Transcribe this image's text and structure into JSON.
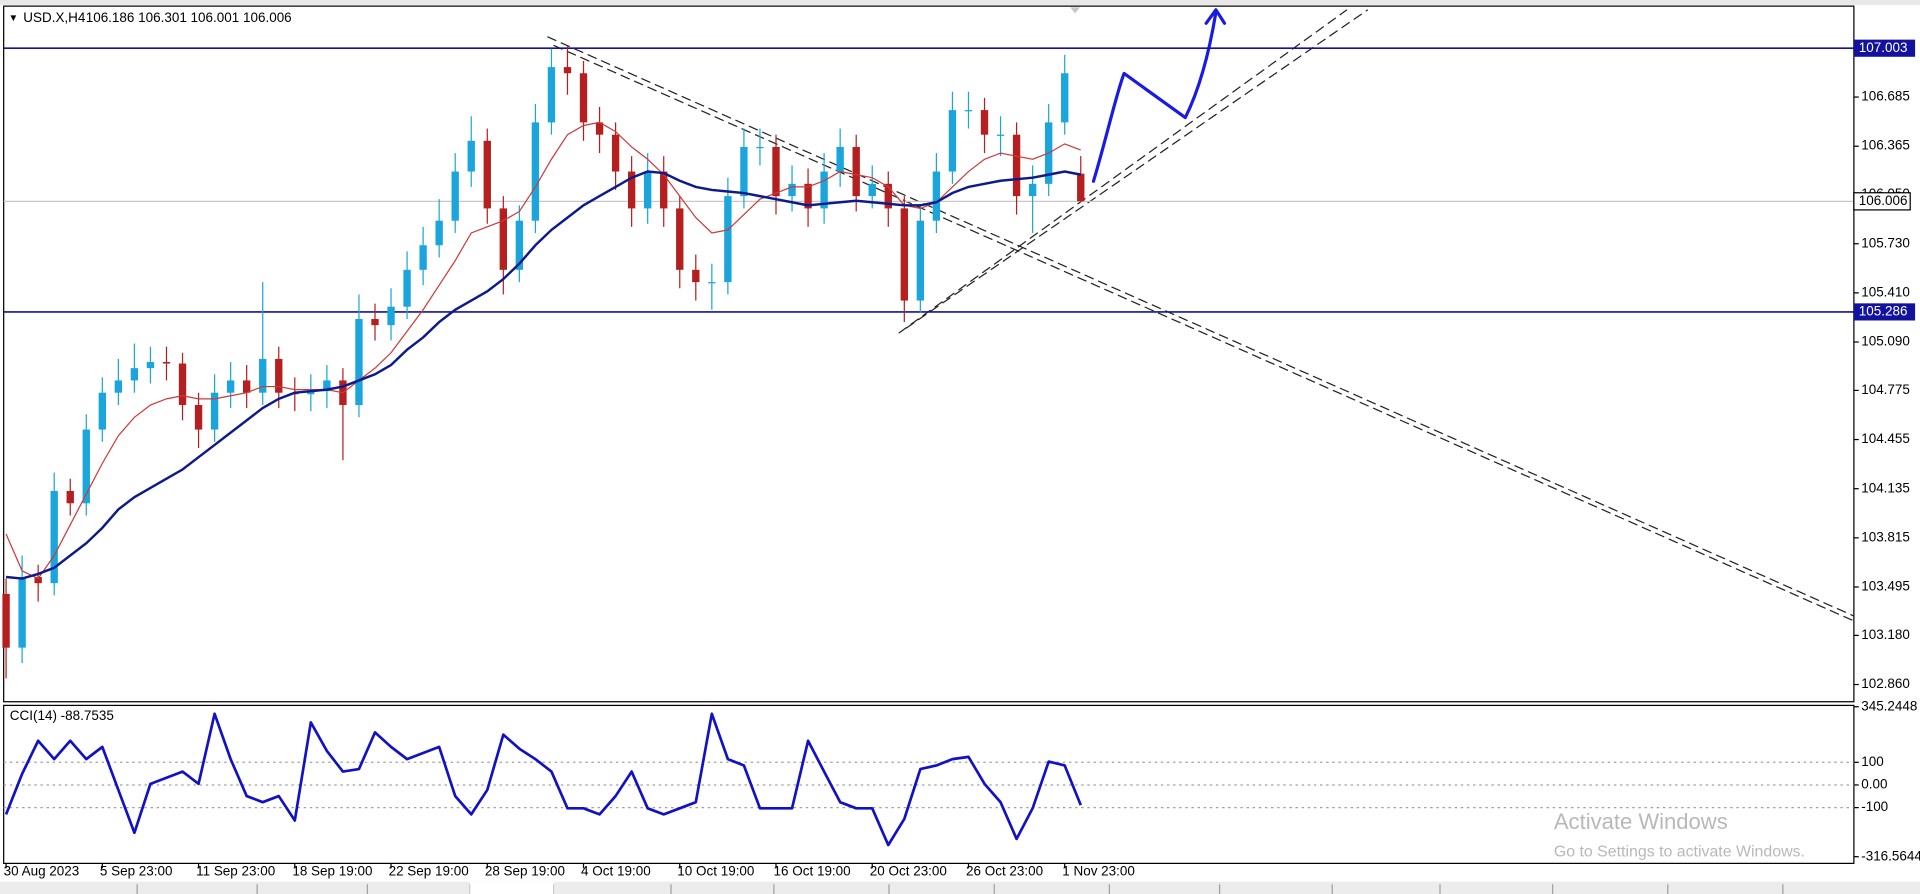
{
  "chart_data": {
    "type": "candlestick",
    "symbol_label": "USD.X,H4",
    "ohlc_label": "106.186 106.301 106.001 106.006",
    "xlim": [
      -0.15,
      115.2
    ],
    "xticks": [
      {
        "value": 0,
        "label": "30 Aug 2023"
      },
      {
        "value": 6,
        "label": "5 Sep 23:00"
      },
      {
        "value": 12,
        "label": "11 Sep 23:00"
      },
      {
        "value": 18,
        "label": "18 Sep 19:00"
      },
      {
        "value": 24,
        "label": "22 Sep 19:00"
      },
      {
        "value": 30,
        "label": "28 Sep 19:00"
      },
      {
        "value": 36,
        "label": "4 Oct 19:00"
      },
      {
        "value": 42,
        "label": "10 Oct 19:00"
      },
      {
        "value": 48,
        "label": "16 Oct 19:00"
      },
      {
        "value": 54,
        "label": "20 Oct 23:00"
      },
      {
        "value": 60,
        "label": "26 Oct 23:00"
      },
      {
        "value": 66,
        "label": "1 Nov 23:00"
      }
    ],
    "ylim": [
      102.748,
      107.277
    ],
    "yticks": [
      106.685,
      106.365,
      {
        "value": 106.05,
        "label": "106.050"
      },
      {
        "value": 105.73,
        "label": "105.730"
      },
      {
        "value": 105.41,
        "label": "105.410"
      },
      {
        "value": 105.09,
        "label": "105.090"
      },
      104.775,
      104.455,
      104.135,
      103.815,
      103.495,
      {
        "value": 103.18,
        "label": "103.180"
      },
      {
        "value": 102.86,
        "label": "102.860"
      }
    ],
    "open": [
      103.45,
      103.1,
      103.56,
      103.52,
      104.12,
      104.04,
      104.52,
      104.76,
      104.84,
      104.92,
      104.96,
      104.95,
      104.68,
      104.52,
      104.76,
      104.84,
      104.76,
      104.98,
      104.76,
      104.75,
      104.77,
      104.84,
      104.68,
      105.24,
      105.2,
      105.32,
      105.56,
      105.72,
      105.88,
      106.2,
      106.4,
      105.96,
      105.56,
      105.88,
      106.52,
      106.88,
      106.84,
      106.52,
      106.44,
      106.2,
      105.96,
      106.2,
      105.96,
      105.56,
      105.48,
      105.48,
      106.04,
      106.36,
      106.36,
      106.04,
      106.12,
      105.96,
      106.2,
      106.36,
      106.04,
      106.12,
      105.96,
      105.36,
      105.88,
      106.2,
      106.6,
      106.6,
      106.44,
      106.44,
      106.04,
      106.12,
      106.52,
      106.186
    ],
    "high": [
      103.55,
      103.7,
      103.64,
      104.24,
      104.2,
      104.62,
      104.86,
      104.98,
      105.08,
      105.06,
      105.06,
      105.02,
      104.76,
      104.88,
      104.96,
      104.94,
      105.48,
      105.06,
      104.86,
      104.88,
      104.94,
      104.92,
      105.4,
      105.34,
      105.44,
      105.68,
      105.84,
      106.02,
      106.32,
      106.56,
      106.48,
      106.04,
      105.98,
      106.64,
      107.0,
      107.02,
      106.92,
      106.62,
      106.52,
      106.3,
      106.32,
      106.3,
      106.04,
      105.66,
      105.6,
      106.16,
      106.48,
      106.48,
      106.44,
      106.24,
      106.22,
      106.32,
      106.48,
      106.44,
      106.24,
      106.2,
      106.04,
      105.98,
      106.32,
      106.72,
      106.72,
      106.68,
      106.56,
      106.52,
      106.24,
      106.64,
      106.96,
      106.301
    ],
    "low": [
      102.9,
      103.0,
      103.4,
      103.44,
      103.96,
      103.96,
      104.44,
      104.68,
      104.76,
      104.82,
      104.84,
      104.58,
      104.4,
      104.44,
      104.66,
      104.66,
      104.68,
      104.66,
      104.64,
      104.64,
      104.66,
      104.32,
      104.6,
      105.1,
      105.1,
      105.24,
      105.46,
      105.64,
      105.8,
      106.1,
      105.86,
      105.4,
      105.48,
      105.8,
      106.44,
      106.7,
      106.4,
      106.32,
      106.08,
      105.84,
      105.86,
      105.84,
      105.44,
      105.36,
      105.3,
      105.4,
      105.96,
      106.24,
      105.92,
      105.94,
      105.84,
      105.86,
      106.1,
      105.94,
      105.96,
      105.84,
      105.22,
      105.28,
      105.8,
      106.12,
      106.48,
      106.32,
      106.3,
      105.92,
      105.8,
      106.04,
      106.44,
      106.001
    ],
    "close": [
      103.1,
      103.56,
      103.52,
      104.12,
      104.04,
      104.52,
      104.76,
      104.84,
      104.92,
      104.96,
      104.95,
      104.68,
      104.52,
      104.76,
      104.84,
      104.76,
      104.98,
      104.76,
      104.75,
      104.77,
      104.84,
      104.68,
      105.24,
      105.2,
      105.32,
      105.56,
      105.72,
      105.88,
      106.2,
      106.4,
      105.96,
      105.56,
      105.88,
      106.52,
      106.88,
      106.84,
      106.52,
      106.44,
      106.2,
      105.96,
      106.2,
      105.96,
      105.56,
      105.48,
      105.48,
      106.04,
      106.36,
      106.36,
      106.04,
      106.12,
      105.96,
      106.2,
      106.36,
      106.04,
      106.12,
      105.96,
      105.36,
      105.88,
      106.2,
      106.6,
      106.6,
      106.44,
      106.44,
      106.04,
      106.12,
      106.52,
      106.84,
      106.006
    ],
    "up_color": "#1aa6dc",
    "down_color": "#b51f1f",
    "series": [
      {
        "color": "#cc3a3a",
        "values": [
          103.84,
          103.6,
          103.55,
          103.7,
          103.9,
          104.1,
          104.3,
          104.48,
          104.6,
          104.68,
          104.72,
          104.74,
          104.72,
          104.72,
          104.74,
          104.76,
          104.8,
          104.8,
          104.78,
          104.78,
          104.78,
          104.76,
          104.84,
          104.92,
          105.02,
          105.16,
          105.3,
          105.46,
          105.62,
          105.8,
          105.84,
          105.88,
          105.94,
          106.1,
          106.28,
          106.44,
          106.5,
          106.52,
          106.46,
          106.36,
          106.28,
          106.18,
          106.04,
          105.9,
          105.8,
          105.82,
          105.92,
          106.02,
          106.06,
          106.1,
          106.1,
          106.14,
          106.2,
          106.18,
          106.16,
          106.1,
          105.98,
          105.96,
          106.0,
          106.1,
          106.2,
          106.28,
          106.32,
          106.3,
          106.28,
          106.32,
          106.38,
          106.34
        ]
      },
      {
        "color": "#0d1a8c",
        "values": [
          103.56,
          103.55,
          103.58,
          103.62,
          103.7,
          103.78,
          103.88,
          104.0,
          104.08,
          104.14,
          104.2,
          104.26,
          104.34,
          104.42,
          104.5,
          104.58,
          104.66,
          104.72,
          104.76,
          104.77,
          104.78,
          104.8,
          104.84,
          104.88,
          104.94,
          105.04,
          105.12,
          105.22,
          105.3,
          105.36,
          105.42,
          105.5,
          105.6,
          105.72,
          105.82,
          105.9,
          105.98,
          106.04,
          106.1,
          106.16,
          106.2,
          106.19,
          106.14,
          106.1,
          106.08,
          106.07,
          106.06,
          106.04,
          106.02,
          106.0,
          105.98,
          105.99,
          106.0,
          106.01,
          106.0,
          105.99,
          105.98,
          105.98,
          106.0,
          106.06,
          106.1,
          106.12,
          106.14,
          106.15,
          106.16,
          106.18,
          106.2,
          106.18
        ]
      }
    ],
    "levels": [
      {
        "value": 107.003,
        "color": "#12129e"
      },
      {
        "value": 105.286,
        "color": "#12129e"
      }
    ],
    "current_price": 106.006,
    "cci": {
      "label": "CCI(14) -88.7535",
      "ylim": [
        -346,
        351
      ],
      "yticks": [
        345.2448,
        100,
        {
          "value": 0,
          "label": "0.00"
        },
        -100,
        -316.5644
      ],
      "levels": [
        100,
        0,
        -100
      ],
      "color": "#1212c4",
      "values": [
        -130,
        49,
        195,
        114,
        195,
        114,
        168,
        -22,
        -211,
        5,
        32,
        59,
        5,
        314,
        114,
        -49,
        -76,
        -49,
        -157,
        276,
        150,
        59,
        70,
        232,
        168,
        114,
        141,
        168,
        -49,
        -130,
        -22,
        222,
        160,
        114,
        59,
        -103,
        -103,
        -130,
        -49,
        59,
        -103,
        -130,
        -103,
        -76,
        314,
        114,
        86,
        -103,
        -103,
        -103,
        195,
        59,
        -76,
        -103,
        -103,
        -265,
        -150,
        70,
        86,
        114,
        124,
        5,
        -76,
        -238,
        -103,
        103,
        86,
        -88.7535
      ]
    }
  },
  "watermark": {
    "title": "Activate Windows",
    "subtitle": "Go to Settings to activate Windows."
  }
}
